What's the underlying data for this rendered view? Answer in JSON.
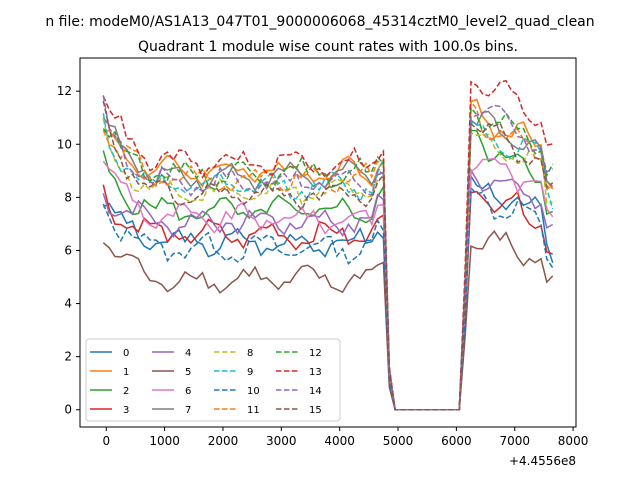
{
  "figure": {
    "suptitle": "n file: modeM0/AS1A13_047T01_9000006068_45314cztM0_level2_quad_clean",
    "title": "Quadrant 1 module wise count rates with 100.0s bins.",
    "x_offset_label": "+4.4556e8"
  },
  "chart_data": {
    "type": "line",
    "title": "Quadrant 1 module wise count rates with 100.0s bins.",
    "xlabel": "",
    "ylabel": "",
    "xlim": [
      -450,
      8050
    ],
    "ylim": [
      -0.65,
      13.25
    ],
    "x_ticks": [
      0,
      1000,
      2000,
      3000,
      4000,
      5000,
      6000,
      7000,
      8000
    ],
    "x_tick_labels": [
      "0",
      "1000",
      "2000",
      "3000",
      "4000",
      "5000",
      "6000",
      "7000",
      "8000"
    ],
    "y_ticks": [
      0,
      2,
      4,
      6,
      8,
      10,
      12
    ],
    "y_tick_labels": [
      "0",
      "2",
      "4",
      "6",
      "8",
      "10",
      "12"
    ],
    "x_offset": "+4.4556e8",
    "grid": false,
    "legend": {
      "placement": "lower-left",
      "columns": 4
    },
    "x_bins": {
      "start": -50,
      "step": 100,
      "count": 78
    },
    "series": [
      {
        "name": "0",
        "color": "#1f77b4",
        "style": "solid",
        "level_pre": 6.3,
        "level_post": 7.2,
        "start": 7.9,
        "peak": 8.4
      },
      {
        "name": "1",
        "color": "#ff7f0e",
        "style": "solid",
        "level_pre": 9.0,
        "level_post": 9.8,
        "start": 10.5,
        "peak": 11.2
      },
      {
        "name": "2",
        "color": "#2ca02c",
        "style": "solid",
        "level_pre": 7.5,
        "level_post": 8.6,
        "start": 9.2,
        "peak": 10.3
      },
      {
        "name": "3",
        "color": "#d62728",
        "style": "solid",
        "level_pre": 6.6,
        "level_post": 7.1,
        "start": 8.2,
        "peak": 8.3
      },
      {
        "name": "4",
        "color": "#9467bd",
        "style": "solid",
        "level_pre": 7.1,
        "level_post": 7.8,
        "start": 8.3,
        "peak": 9.0
      },
      {
        "name": "5",
        "color": "#8c564b",
        "style": "solid",
        "level_pre": 4.9,
        "level_post": 5.6,
        "start": 6.7,
        "peak": 6.5
      },
      {
        "name": "6",
        "color": "#e377c2",
        "style": "solid",
        "level_pre": 7.2,
        "level_post": 8.3,
        "start": 9.7,
        "peak": 9.5
      },
      {
        "name": "7",
        "color": "#7f7f7f",
        "style": "solid",
        "level_pre": 8.8,
        "level_post": 9.5,
        "start": 11.1,
        "peak": 10.9
      },
      {
        "name": "8",
        "color": "#bcbd22",
        "style": "dashed",
        "level_pre": 8.2,
        "level_post": 9.0,
        "start": 10.4,
        "peak": 10.3
      },
      {
        "name": "9",
        "color": "#17becf",
        "style": "dashed",
        "level_pre": 8.4,
        "level_post": 9.3,
        "start": 10.8,
        "peak": 10.6
      },
      {
        "name": "10",
        "color": "#1f77b4",
        "style": "dashed",
        "level_pre": 6.1,
        "level_post": 6.9,
        "start": 7.8,
        "peak": 8.1
      },
      {
        "name": "11",
        "color": "#ff7f0e",
        "style": "dashed",
        "level_pre": 8.7,
        "level_post": 9.6,
        "start": 10.9,
        "peak": 11.0
      },
      {
        "name": "12",
        "color": "#2ca02c",
        "style": "dashed",
        "level_pre": 8.9,
        "level_post": 10.0,
        "start": 11.0,
        "peak": 11.1
      },
      {
        "name": "13",
        "color": "#d62728",
        "style": "dashed",
        "level_pre": 9.3,
        "level_post": 10.9,
        "start": 12.0,
        "peak": 12.5
      },
      {
        "name": "14",
        "color": "#9467bd",
        "style": "dashed",
        "level_pre": 8.6,
        "level_post": 9.7,
        "start": 11.3,
        "peak": 11.5
      },
      {
        "name": "15",
        "color": "#8c564b",
        "style": "dashed",
        "level_pre": 8.1,
        "level_post": 9.1,
        "start": 11.2,
        "peak": 10.9
      }
    ],
    "gap": {
      "drop_start": 4750,
      "zero_from": 4950,
      "zero_to": 6050,
      "rise_end": 6250
    }
  }
}
